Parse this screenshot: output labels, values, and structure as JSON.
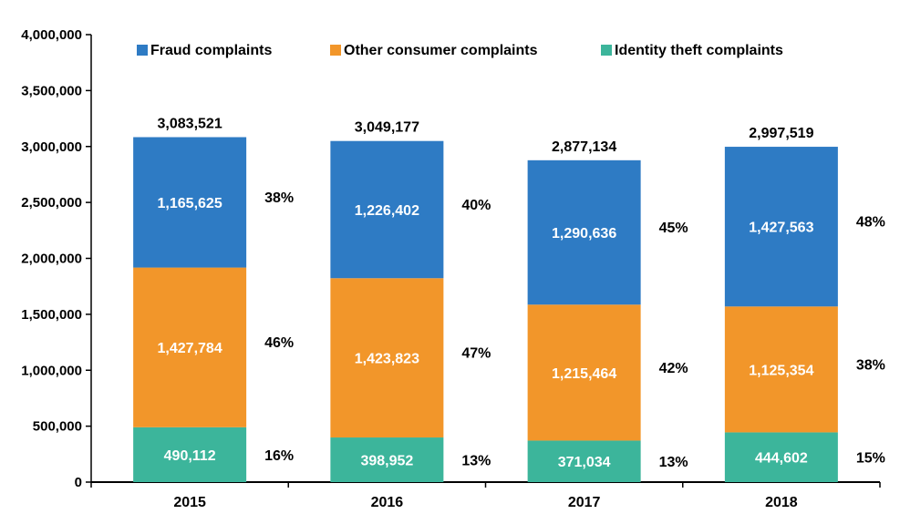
{
  "chart_data": {
    "type": "bar",
    "stacked": true,
    "categories": [
      "2015",
      "2016",
      "2017",
      "2018"
    ],
    "series": [
      {
        "name": "Identity theft complaints",
        "color": "#3cb59b",
        "values": [
          490112,
          398952,
          371034,
          444602
        ],
        "value_labels": [
          "490,112",
          "398,952",
          "371,034",
          "444,602"
        ],
        "percent_labels": [
          "16%",
          "13%",
          "13%",
          "15%"
        ]
      },
      {
        "name": "Other consumer complaints",
        "color": "#f2962a",
        "values": [
          1427784,
          1423823,
          1215464,
          1125354
        ],
        "value_labels": [
          "1,427,784",
          "1,423,823",
          "1,215,464",
          "1,125,354"
        ],
        "percent_labels": [
          "46%",
          "47%",
          "42%",
          "38%"
        ]
      },
      {
        "name": "Fraud complaints",
        "color": "#2e7bc4",
        "values": [
          1165625,
          1226402,
          1290636,
          1427563
        ],
        "value_labels": [
          "1,165,625",
          "1,226,402",
          "1,290,636",
          "1,427,563"
        ],
        "percent_labels": [
          "38%",
          "40%",
          "45%",
          "48%"
        ]
      }
    ],
    "totals": [
      3083521,
      3049177,
      2877134,
      2997519
    ],
    "total_labels": [
      "3,083,521",
      "3,049,177",
      "2,877,134",
      "2,997,519"
    ],
    "legend_order": [
      "Fraud complaints",
      "Other consumer complaints",
      "Identity theft complaints"
    ],
    "legend_position": "top",
    "ylim": [
      0,
      4000000
    ],
    "yticks": [
      0,
      500000,
      1000000,
      1500000,
      2000000,
      2500000,
      3000000,
      3500000,
      4000000
    ],
    "ytick_labels": [
      "0",
      "500,000",
      "1,000,000",
      "1,500,000",
      "2,000,000",
      "2,500,000",
      "3,000,000",
      "3,500,000",
      "4,000,000"
    ],
    "grid": false,
    "title": "",
    "xlabel": "",
    "ylabel": ""
  }
}
